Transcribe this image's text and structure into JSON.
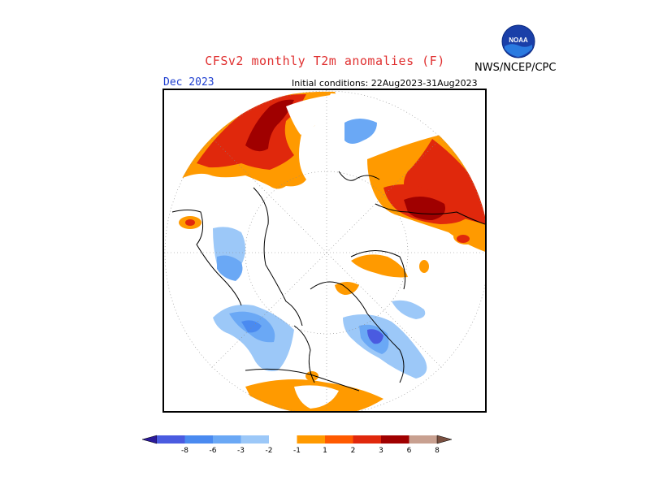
{
  "title": "CFSv2 monthly T2m anomalies (F)",
  "organization": "NWS/NCEP/CPC",
  "logo_text": "NOAA",
  "period": "Dec 2023",
  "initial_conditions": "Initial conditions: 22Aug2023-31Aug2023",
  "colorbar": {
    "labels": [
      "-8",
      "-6",
      "-3",
      "-2",
      "-1",
      "1",
      "2",
      "3",
      "6",
      "8"
    ],
    "colors": [
      "#2b1a99",
      "#4a5be0",
      "#4a8af0",
      "#6aa8f5",
      "#9cc8f8",
      "#ffffff",
      "#ff9a00",
      "#ff5a00",
      "#e0280c",
      "#a00000",
      "#c8a090",
      "#7a5040"
    ]
  },
  "colors": {
    "title": "#e03030",
    "period": "#2040d0",
    "warm_light": "#ff9a00",
    "warm_mid": "#ff5a00",
    "warm_strong": "#e0280c",
    "warm_extreme": "#a00000",
    "cool_light": "#6aa8f5",
    "cool_mid": "#4a8af0",
    "cool_strong": "#4a5be0",
    "cool_extreme": "#2b1a99"
  }
}
